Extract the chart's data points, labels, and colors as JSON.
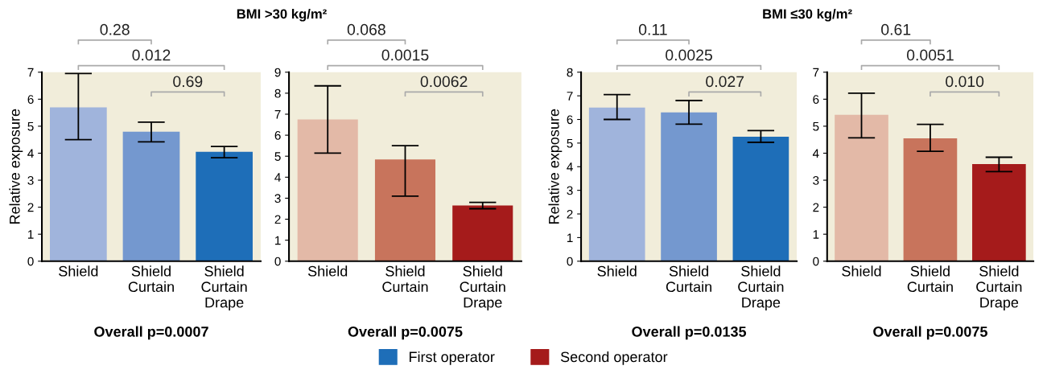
{
  "chart_data": [
    {
      "type": "bar",
      "title": "BMI >30 kg/m²",
      "ylabel": "Relative exposure",
      "xlabel": "Overall p=0.0007",
      "categories": [
        "Shield",
        "Shield\nCurtain",
        "Shield\nCurtain\nDrape"
      ],
      "ylim": [
        0,
        7
      ],
      "yticks": [
        0,
        1,
        2,
        3,
        4,
        5,
        6,
        7
      ],
      "legend": "bottom",
      "series": [
        {
          "name": "First operator",
          "color": "#1e6eb8",
          "colors": [
            "#a0b4dc",
            "#7498cf",
            "#1e6eb8"
          ],
          "values": [
            5.7,
            4.8,
            4.05
          ],
          "errors": [
            [
              4.5,
              6.95
            ],
            [
              4.42,
              5.15
            ],
            [
              3.83,
              4.25
            ]
          ]
        }
      ],
      "annotations": [
        "0.28",
        "0.012",
        "0.69"
      ]
    },
    {
      "type": "bar",
      "xlabel": "Overall p=0.0075",
      "categories": [
        "Shield",
        "Shield\nCurtain",
        "Shield\nCurtain\nDrape"
      ],
      "ylim": [
        0,
        9
      ],
      "yticks": [
        0,
        1,
        2,
        3,
        4,
        5,
        6,
        7,
        8,
        9
      ],
      "legend": "bottom",
      "series": [
        {
          "name": "Second operator",
          "color": "#a51b1b",
          "colors": [
            "#e3b9a7",
            "#c8745c",
            "#a51b1b"
          ],
          "values": [
            6.75,
            4.85,
            2.65
          ],
          "errors": [
            [
              5.15,
              8.35
            ],
            [
              3.1,
              5.5
            ],
            [
              2.5,
              2.8
            ]
          ]
        }
      ],
      "annotations": [
        "0.068",
        "0.0015",
        "0.0062"
      ]
    },
    {
      "type": "bar",
      "title": "BMI ≤30 kg/m²",
      "ylabel": "Relative exposure",
      "xlabel": "Overall p=0.0135",
      "categories": [
        "Shield",
        "Shield\nCurtain",
        "Shield\nCurtain\nDrape"
      ],
      "ylim": [
        0,
        8
      ],
      "yticks": [
        0,
        1,
        2,
        3,
        4,
        5,
        6,
        7,
        8
      ],
      "series": [
        {
          "colors": [
            "#a0b4dc",
            "#7498cf",
            "#1e6eb8"
          ],
          "values": [
            6.5,
            6.3,
            5.27
          ],
          "errors": [
            [
              6.0,
              7.05
            ],
            [
              5.8,
              6.8
            ],
            [
              5.03,
              5.53
            ]
          ]
        }
      ],
      "annotations": [
        "0.11",
        "0.0025",
        "0.027"
      ]
    },
    {
      "type": "bar",
      "xlabel": "Overall p=0.0075",
      "categories": [
        "Shield",
        "Shield\nCurtain",
        "Shield\nCurtain\nDrape"
      ],
      "ylim": [
        0,
        7
      ],
      "yticks": [
        0,
        1,
        2,
        3,
        4,
        5,
        6,
        7
      ],
      "series": [
        {
          "colors": [
            "#e3b9a7",
            "#c8745c",
            "#a51b1b"
          ],
          "values": [
            5.42,
            4.55,
            3.6
          ],
          "errors": [
            [
              4.57,
              6.22
            ],
            [
              4.07,
              5.07
            ],
            [
              3.32,
              3.85
            ]
          ]
        }
      ],
      "annotations": [
        "0.61",
        "0.0051",
        "0.010"
      ]
    }
  ]
}
